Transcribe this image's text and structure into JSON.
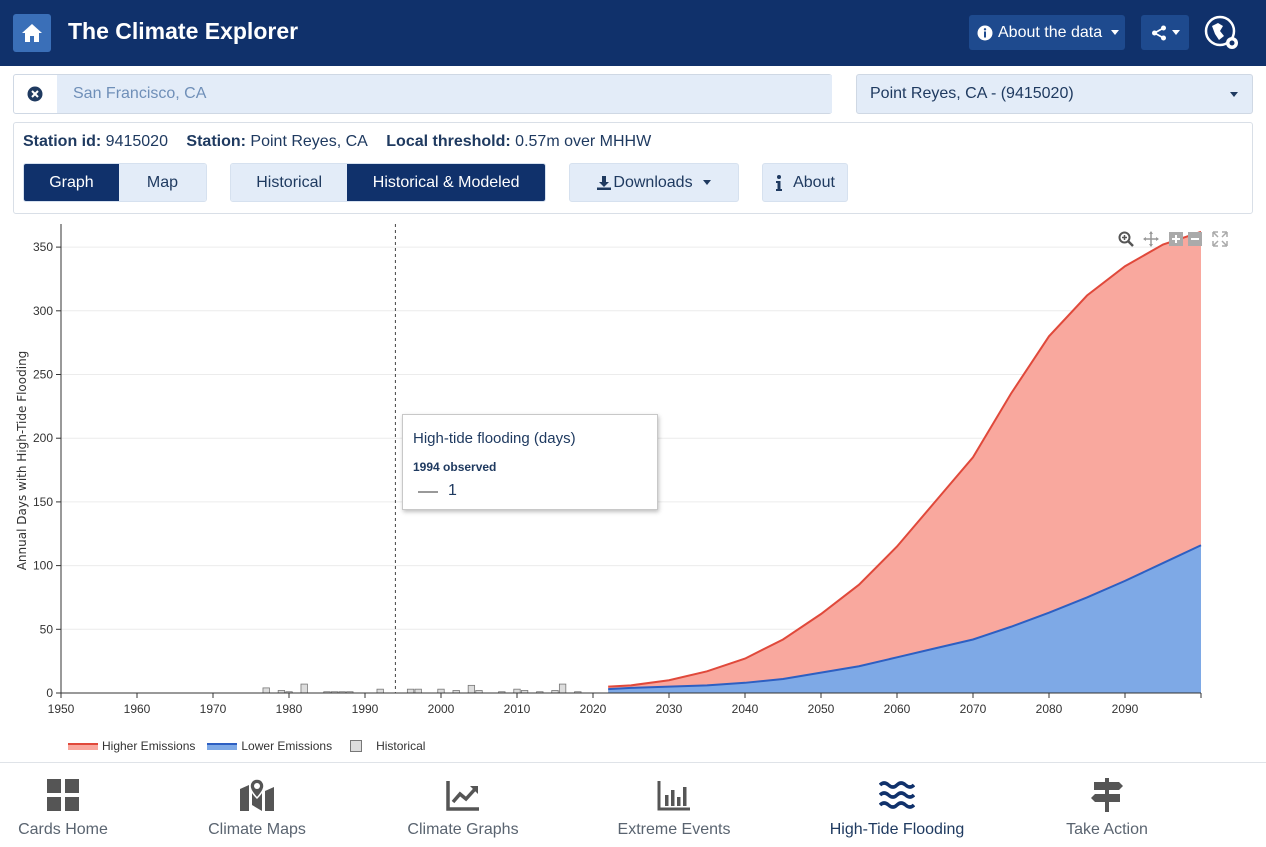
{
  "header": {
    "title": "The Climate Explorer",
    "about_data_label": "About the data"
  },
  "location": {
    "value": "San Francisco, CA",
    "station_select": "Point Reyes, CA - (9415020)"
  },
  "info": {
    "station_id_label": "Station id:",
    "station_id": "9415020",
    "station_label": "Station:",
    "station_name": "Point Reyes, CA",
    "threshold_label": "Local threshold:",
    "threshold": "0.57m over MHHW"
  },
  "view_toggle": {
    "graph": "Graph",
    "map": "Map",
    "active": "graph"
  },
  "data_toggle": {
    "historical": "Historical",
    "modeled": "Historical & Modeled",
    "active": "modeled"
  },
  "downloads_label": "Downloads",
  "about_label": "About",
  "tooltip": {
    "title": "High-tide flooding (days)",
    "subtitle": "1994 observed",
    "value": "1"
  },
  "chart_data": {
    "type": "area",
    "ylabel": "Annual Days with High-Tide Flooding",
    "xlabel": "",
    "xlim": [
      1950,
      2100
    ],
    "ylim": [
      0,
      365
    ],
    "x_ticks": [
      1950,
      1960,
      1970,
      1980,
      1990,
      2000,
      2010,
      2020,
      2030,
      2040,
      2050,
      2060,
      2070,
      2080,
      2090
    ],
    "y_ticks": [
      0,
      50,
      100,
      150,
      200,
      250,
      300,
      350
    ],
    "grid": "horizontal",
    "legend_position": "bottom-left",
    "series": [
      {
        "name": "Higher Emissions",
        "color": "#f9a89e",
        "line_color": "#e0493b",
        "x": [
          2022,
          2025,
          2030,
          2035,
          2040,
          2045,
          2050,
          2055,
          2060,
          2065,
          2070,
          2075,
          2080,
          2085,
          2090,
          2095,
          2100
        ],
        "values": [
          5,
          6,
          10,
          17,
          27,
          42,
          62,
          85,
          115,
          150,
          185,
          235,
          280,
          312,
          335,
          352,
          362
        ]
      },
      {
        "name": "Lower Emissions",
        "color": "#7ea9e6",
        "line_color": "#2d5fc2",
        "x": [
          2022,
          2025,
          2030,
          2035,
          2040,
          2045,
          2050,
          2055,
          2060,
          2065,
          2070,
          2075,
          2080,
          2085,
          2090,
          2095,
          2100
        ],
        "values": [
          3,
          4,
          5,
          6,
          8,
          11,
          16,
          21,
          28,
          35,
          42,
          52,
          63,
          75,
          88,
          102,
          116
        ]
      },
      {
        "name": "Historical",
        "color": "#dddddd",
        "line_color": "#777777",
        "type": "bar",
        "x": [
          1977,
          1979,
          1980,
          1982,
          1985,
          1986,
          1987,
          1988,
          1992,
          1996,
          1997,
          2000,
          2002,
          2004,
          2005,
          2008,
          2010,
          2011,
          2013,
          2015,
          2016,
          2018
        ],
        "values": [
          4,
          2,
          1,
          7,
          1,
          1,
          1,
          1,
          3,
          3,
          3,
          3,
          2,
          6,
          2,
          1,
          3,
          2,
          1,
          2,
          7,
          1
        ]
      }
    ],
    "marker_year": 1994
  },
  "nav": [
    {
      "label": "Cards Home",
      "icon": "cards-grid-icon"
    },
    {
      "label": "Climate Maps",
      "icon": "map-marker-icon"
    },
    {
      "label": "Climate Graphs",
      "icon": "chart-line-icon"
    },
    {
      "label": "Extreme Events",
      "icon": "bar-chart-icon"
    },
    {
      "label": "High-Tide Flooding",
      "icon": "waves-icon",
      "active": true
    },
    {
      "label": "Take Action",
      "icon": "signpost-icon"
    }
  ]
}
